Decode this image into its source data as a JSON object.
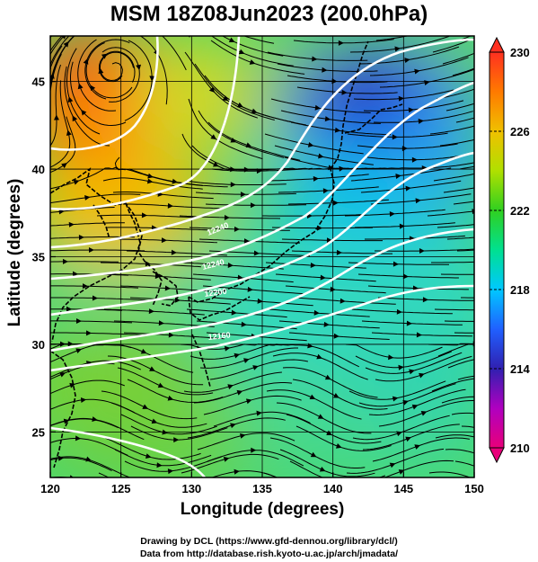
{
  "title": "MSM 18Z08Jun2023 (200.0hPa)",
  "x_axis": {
    "label": "Longitude (degrees)",
    "ticks": [
      "120",
      "125",
      "130",
      "135",
      "140",
      "145",
      "150"
    ],
    "range": [
      120,
      150
    ]
  },
  "y_axis": {
    "label": "Latitude  (degrees)",
    "ticks": [
      "25",
      "30",
      "35",
      "40",
      "45"
    ],
    "range": [
      22.4,
      47.6
    ]
  },
  "colorbar": {
    "ticks": [
      "230",
      "226",
      "222",
      "218",
      "214",
      "210"
    ],
    "range": [
      210,
      230
    ],
    "colors": [
      "#e8007a",
      "#b000c0",
      "#3020b0",
      "#2060ff",
      "#00c8ff",
      "#00e090",
      "#30d020",
      "#b0e000",
      "#f0c000",
      "#ff7a00",
      "#ff3020"
    ]
  },
  "contour_labels": [
    "12240",
    "12240",
    "12200",
    "12160"
  ],
  "credits": [
    "Drawing by DCL (https://www.gfd-dennou.org/library/dcl/)",
    "Data from http://database.rish.kyoto-u.ac.jp/arch/jmadata/"
  ],
  "colors": {
    "land_line": "#000000",
    "contour": "#ffffff",
    "streamline": "#000000"
  }
}
